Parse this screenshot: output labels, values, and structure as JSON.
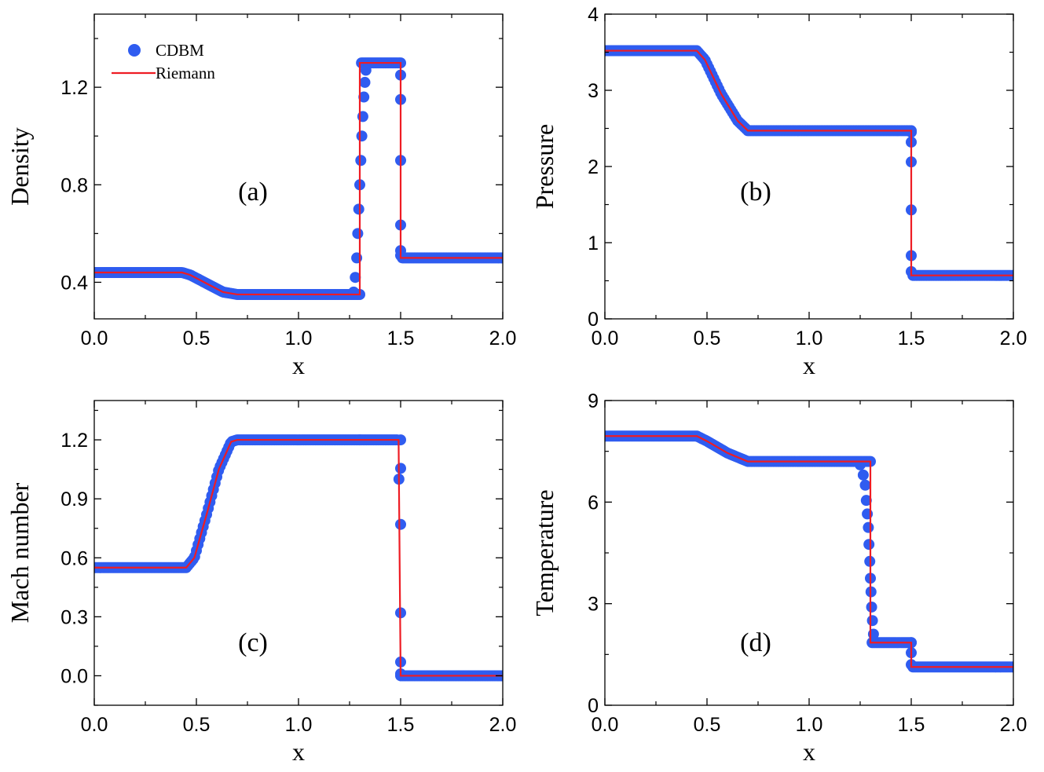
{
  "legend": {
    "cdbm": "CDBM",
    "riemann": "Riemann",
    "cdbm_color": "#2f5cf0",
    "riemann_color": "#ee1c24"
  },
  "chart_data": [
    {
      "id": "a",
      "type": "line",
      "panel_label": "(a)",
      "xlabel": "x",
      "ylabel": "Density",
      "xlim": [
        0,
        2
      ],
      "ylim": [
        0.25,
        1.5
      ],
      "xticks": [
        "0.0",
        "0.5",
        "1.0",
        "1.5",
        "2.0"
      ],
      "xtick_values": [
        0,
        0.5,
        1,
        1.5,
        2
      ],
      "yticks": [
        "0.4",
        "0.8",
        "1.2"
      ],
      "ytick_values": [
        0.4,
        0.8,
        1.2
      ],
      "show_legend": true,
      "series": [
        {
          "name": "Riemann",
          "x": [
            0,
            0.43,
            0.47,
            0.55,
            0.63,
            0.7,
            1.3,
            1.3,
            1.5,
            1.5,
            2.0
          ],
          "y": [
            0.44,
            0.44,
            0.43,
            0.395,
            0.36,
            0.35,
            0.35,
            1.3,
            1.3,
            0.5,
            0.5
          ]
        },
        {
          "name": "CDBM",
          "x": [
            1.27,
            1.278,
            1.285,
            1.29,
            1.295,
            1.3,
            1.305,
            1.31,
            1.315,
            1.32,
            1.325,
            1.33,
            1.5,
            1.5,
            1.5,
            1.5,
            1.5,
            1.5
          ],
          "y": [
            0.36,
            0.42,
            0.5,
            0.6,
            0.7,
            0.8,
            0.9,
            1.0,
            1.08,
            1.16,
            1.22,
            1.27,
            1.25,
            1.15,
            0.9,
            0.635,
            0.53,
            0.51
          ]
        }
      ]
    },
    {
      "id": "b",
      "type": "line",
      "panel_label": "(b)",
      "xlabel": "x",
      "ylabel": "Pressure",
      "xlim": [
        0,
        2
      ],
      "ylim": [
        0,
        4
      ],
      "xticks": [
        "0.0",
        "0.5",
        "1.0",
        "1.5",
        "2.0"
      ],
      "xtick_values": [
        0,
        0.5,
        1,
        1.5,
        2
      ],
      "yticks": [
        "0",
        "1",
        "2",
        "3",
        "4"
      ],
      "ytick_values": [
        0,
        1,
        2,
        3,
        4
      ],
      "show_legend": false,
      "series": [
        {
          "name": "Riemann",
          "x": [
            0,
            0.45,
            0.49,
            0.57,
            0.65,
            0.7,
            1.5,
            1.5,
            2.0
          ],
          "y": [
            3.52,
            3.52,
            3.4,
            2.95,
            2.6,
            2.47,
            2.47,
            0.57,
            0.57
          ]
        },
        {
          "name": "CDBM",
          "x": [
            1.5,
            1.5,
            1.5,
            1.5,
            1.5,
            1.5
          ],
          "y": [
            2.45,
            2.32,
            2.06,
            1.43,
            0.83,
            0.62
          ]
        }
      ]
    },
    {
      "id": "c",
      "type": "line",
      "panel_label": "(c)",
      "xlabel": "x",
      "ylabel": "Mach number",
      "xlim": [
        0,
        2
      ],
      "ylim": [
        -0.15,
        1.4
      ],
      "xticks": [
        "0.0",
        "0.5",
        "1.0",
        "1.5",
        "2.0"
      ],
      "xtick_values": [
        0,
        0.5,
        1,
        1.5,
        2
      ],
      "yticks": [
        "0.0",
        "0.3",
        "0.6",
        "0.9",
        "1.2"
      ],
      "ytick_values": [
        0,
        0.3,
        0.6,
        0.9,
        1.2
      ],
      "show_legend": false,
      "series": [
        {
          "name": "Riemann",
          "x": [
            0,
            0.45,
            0.49,
            0.55,
            0.61,
            0.67,
            0.7,
            1.49,
            1.5,
            2.0
          ],
          "y": [
            0.55,
            0.55,
            0.6,
            0.82,
            1.05,
            1.19,
            1.2,
            1.2,
            0.0,
            0.0
          ]
        },
        {
          "name": "CDBM",
          "x": [
            1.3,
            1.5,
            1.5,
            1.5,
            1.5,
            1.5,
            1.5
          ],
          "y": [
            1.2,
            1.2,
            1.055,
            0.77,
            0.32,
            0.07,
            0.01
          ]
        }
      ]
    },
    {
      "id": "d",
      "type": "line",
      "panel_label": "(d)",
      "xlabel": "x",
      "ylabel": "Temperature",
      "xlim": [
        0,
        2
      ],
      "ylim": [
        0,
        9
      ],
      "xticks": [
        "0.0",
        "0.5",
        "1.0",
        "1.5",
        "2.0"
      ],
      "xtick_values": [
        0,
        0.5,
        1,
        1.5,
        2
      ],
      "yticks": [
        "0",
        "3",
        "6",
        "9"
      ],
      "ytick_values": [
        0,
        3,
        6,
        9
      ],
      "show_legend": false,
      "series": [
        {
          "name": "Riemann",
          "x": [
            0,
            0.45,
            0.5,
            0.6,
            0.7,
            1.3,
            1.3,
            1.5,
            1.5,
            2.0
          ],
          "y": [
            7.95,
            7.95,
            7.8,
            7.45,
            7.2,
            7.2,
            1.85,
            1.85,
            1.13,
            1.13
          ]
        },
        {
          "name": "CDBM",
          "x": [
            1.25,
            1.265,
            1.275,
            1.28,
            1.285,
            1.29,
            1.293,
            1.297,
            1.3,
            1.303,
            1.306,
            1.31,
            1.315,
            1.5,
            1.5,
            1.5
          ],
          "y": [
            7.1,
            6.8,
            6.5,
            6.05,
            5.65,
            5.25,
            4.75,
            4.25,
            3.75,
            3.35,
            2.9,
            2.5,
            2.1,
            1.85,
            1.55,
            1.2
          ]
        }
      ]
    }
  ]
}
